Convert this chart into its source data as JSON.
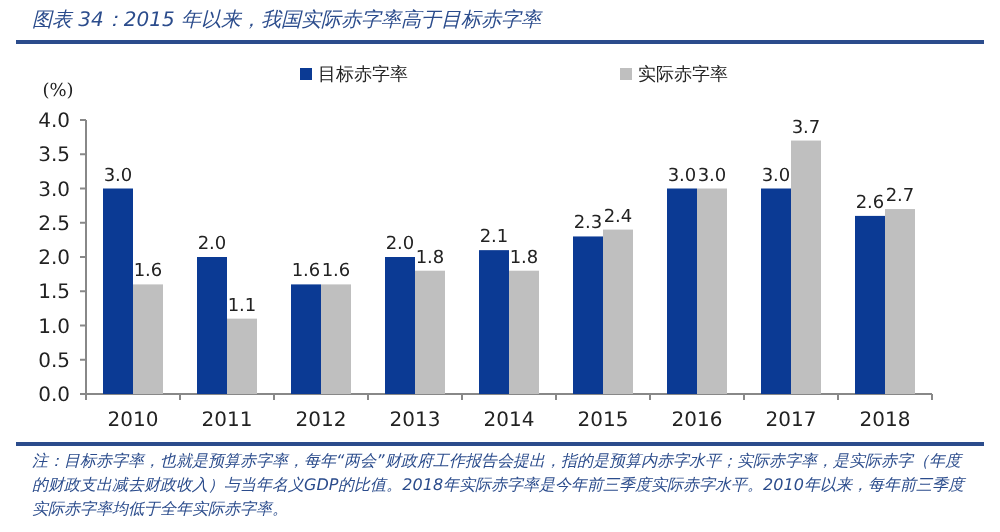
{
  "chart_data": {
    "type": "bar",
    "title": "图表 34：2015 年以来，我国实际赤字率高于目标赤字率",
    "ylabel": "(%)",
    "categories": [
      "2010",
      "2011",
      "2012",
      "2013",
      "2014",
      "2015",
      "2016",
      "2017",
      "2018"
    ],
    "series": [
      {
        "name": "目标赤字率",
        "color": "#0b3a94",
        "values": [
          3.0,
          2.0,
          1.6,
          2.0,
          2.1,
          2.3,
          3.0,
          3.0,
          2.6
        ],
        "value_labels": [
          "3.0",
          "2.0",
          "1.6",
          "2.0",
          "2.1",
          "2.3",
          "3.0",
          "3.0",
          "2.6"
        ]
      },
      {
        "name": "实际赤字率",
        "color": "#bfbfbf",
        "values": [
          1.6,
          1.1,
          1.6,
          1.8,
          1.8,
          2.4,
          3.0,
          3.7,
          2.7
        ],
        "value_labels": [
          "1.6",
          "1.1",
          "1.6",
          "1.8",
          "1.8",
          "2.4",
          "3.0",
          "3.7",
          "2.7"
        ]
      }
    ],
    "ylim": [
      0,
      4.0
    ],
    "yticks": [
      {
        "value": 0,
        "label": "0.0"
      },
      {
        "value": 0.5,
        "label": "0.5"
      },
      {
        "value": 1,
        "label": "1.0"
      },
      {
        "value": 1.5,
        "label": "1.5"
      },
      {
        "value": 2,
        "label": "2.0"
      },
      {
        "value": 2.5,
        "label": "2.5"
      },
      {
        "value": 3,
        "label": "3.0"
      },
      {
        "value": 3.5,
        "label": "3.5"
      },
      {
        "value": 4,
        "label": "4.0"
      }
    ],
    "legend": "top",
    "annotations": [
      "注：目标赤字率，也就是预算赤字率，每年“两会”财政府工作报告会提出，指的是预算内赤字水平；实际赤字率，是实际赤字（年度的财政支出减去财政收入）与当年名义GDP的比值。2018年实际赤字率是今年前三季度实际赤字水平。2010年以来，每年前三季度实际赤字率均低于全年实际赤字率。"
    ]
  }
}
